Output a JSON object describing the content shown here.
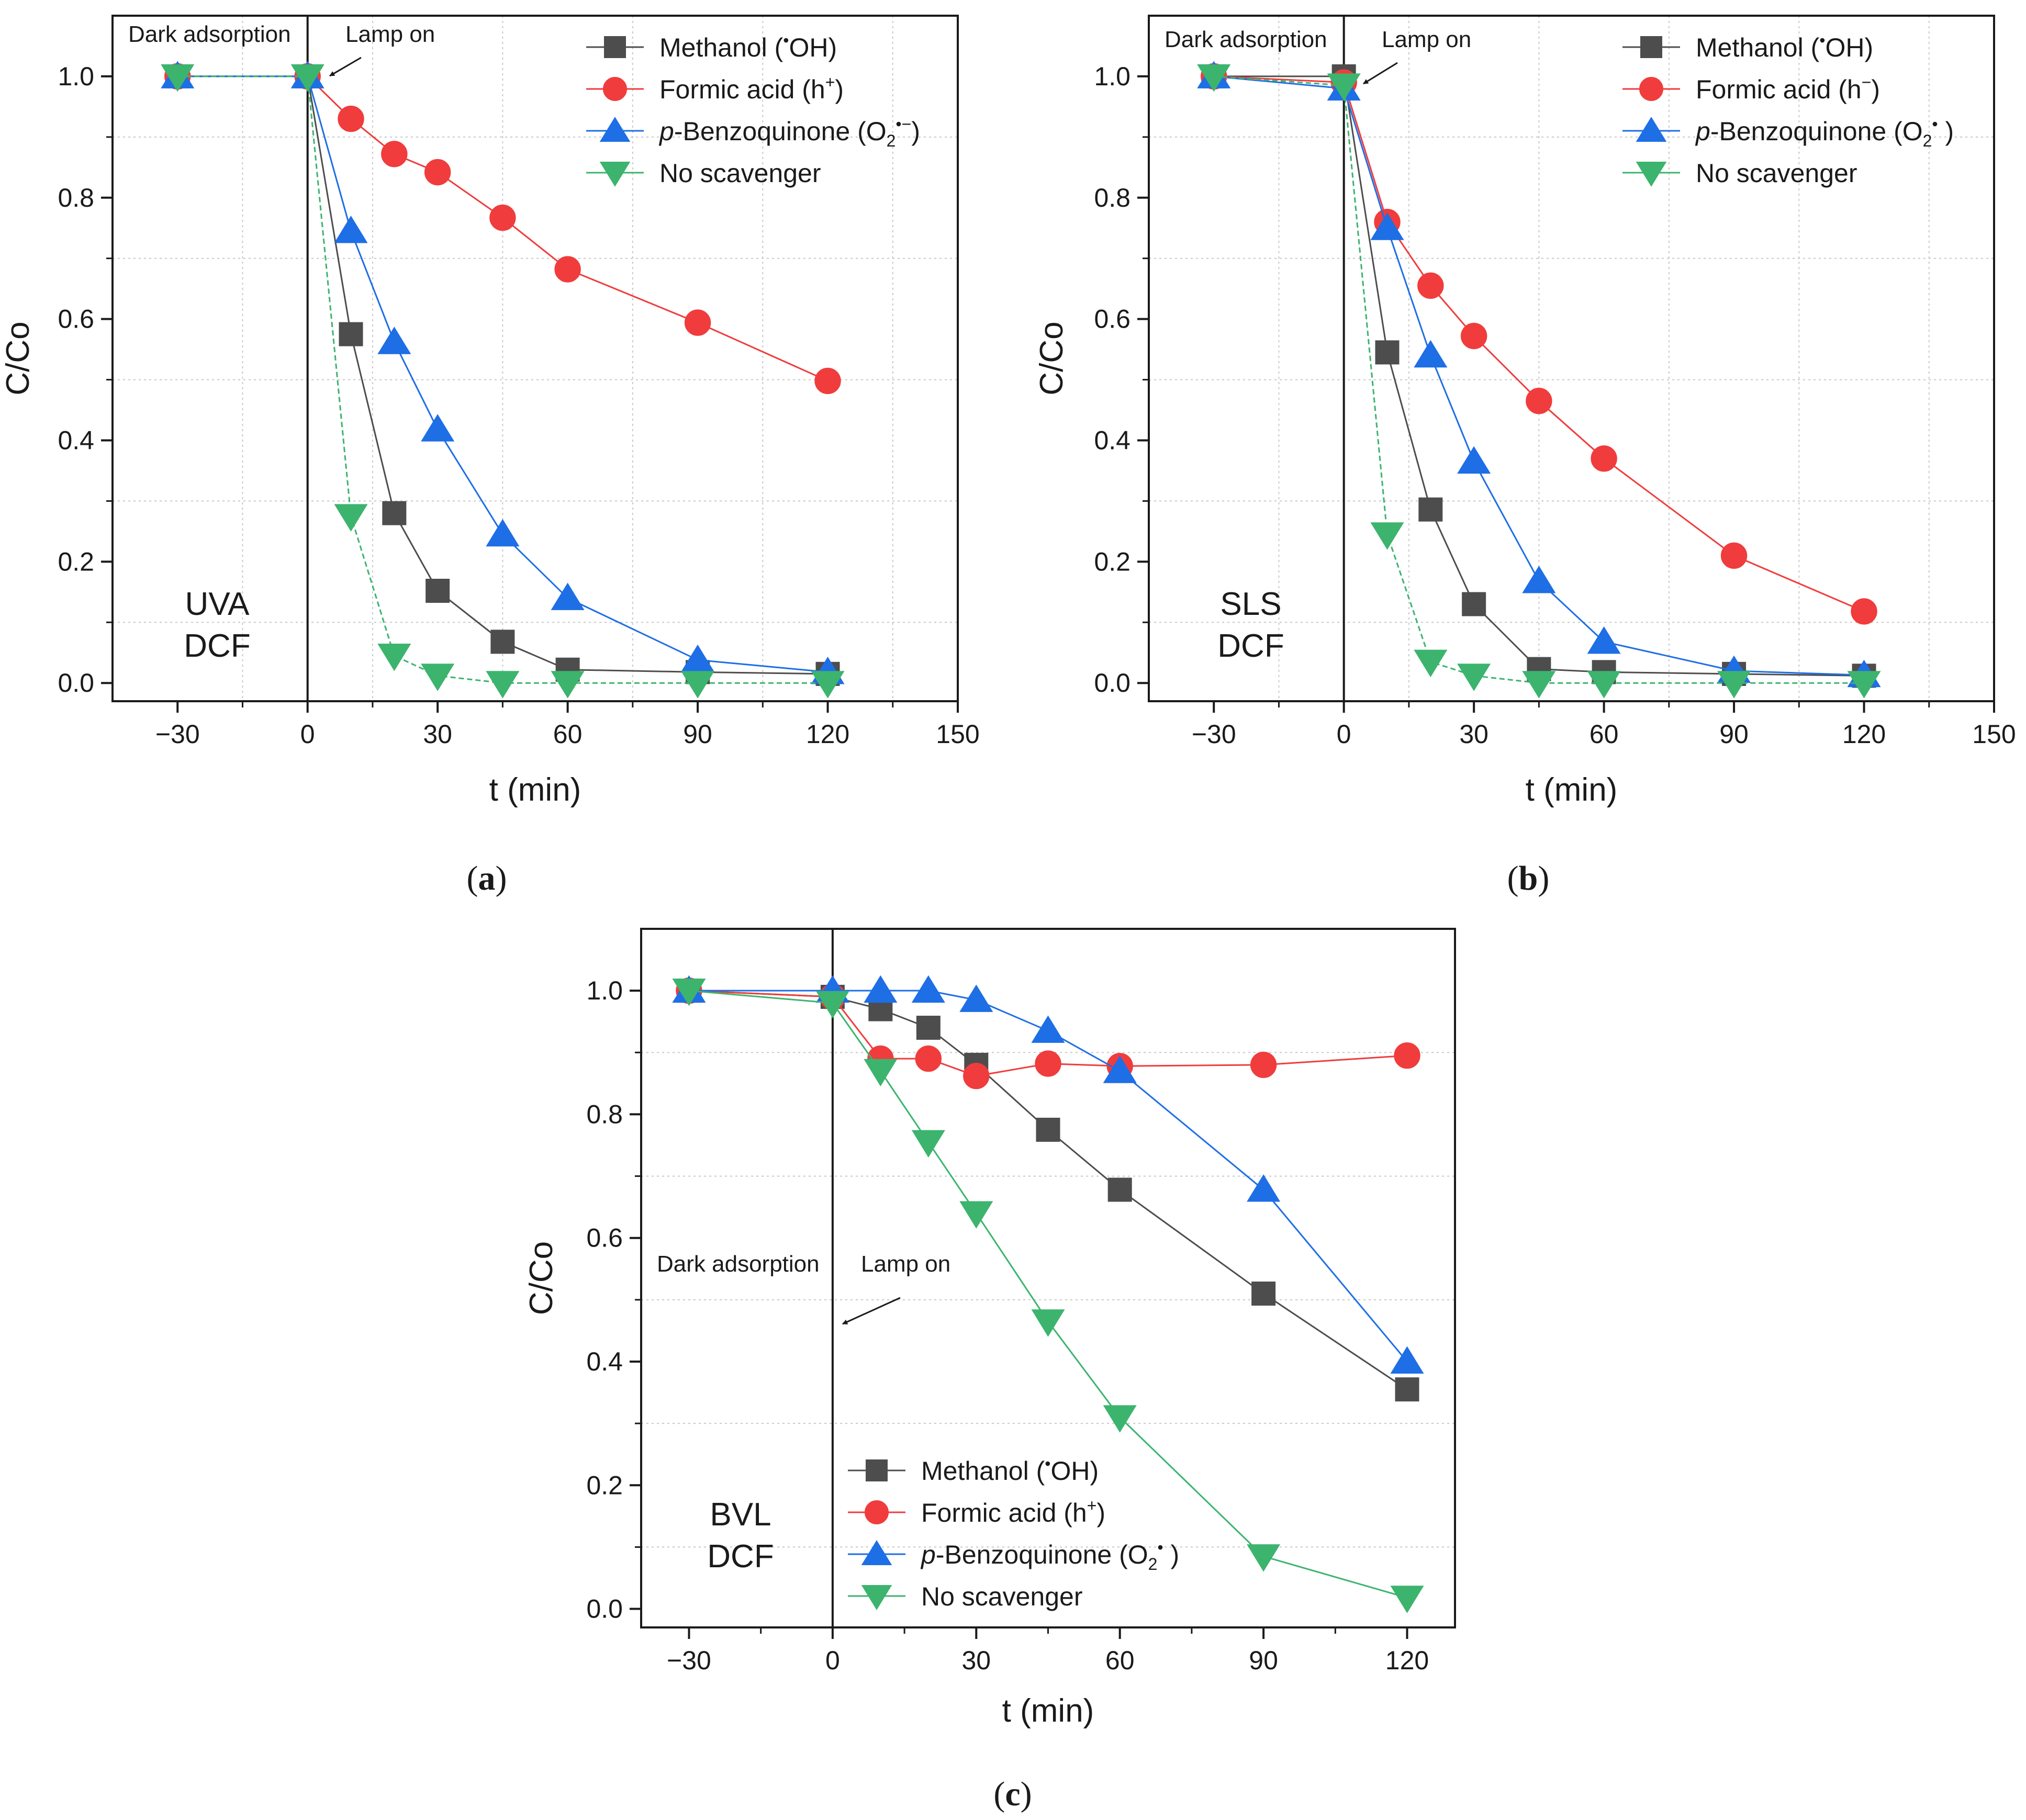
{
  "figure": {
    "panel_captions": [
      "(a)",
      "(b)",
      "(c)"
    ]
  },
  "colors": {
    "methanol": "#4d4d4d",
    "formic": "#f03c3c",
    "benzoquinone": "#1e6ee6",
    "none": "#3cb46e",
    "axis": "#1a1a1a",
    "grid": "#c8c8c8"
  },
  "chart_data": [
    {
      "id": "a",
      "type": "line",
      "caption": "(a)",
      "caption_letter": "a",
      "xlabel": "t (min)",
      "ylabel": "C/Co",
      "xlim": [
        -45,
        150
      ],
      "ylim": [
        -0.03,
        1.1
      ],
      "xticks": [
        -30,
        0,
        30,
        60,
        90,
        120,
        150
      ],
      "xtick_labels": [
        "−30",
        "0",
        "30",
        "60",
        "90",
        "120",
        "150"
      ],
      "yticks": [
        0.0,
        0.2,
        0.4,
        0.6,
        0.8,
        1.0
      ],
      "ytick_labels": [
        "0.0",
        "0.2",
        "0.4",
        "0.6",
        "0.8",
        "1.0"
      ],
      "grid": true,
      "legend_position": "top-right",
      "annotations": {
        "dark": "Dark adsorption",
        "lamp": "Lamp on",
        "label_line1": "UVA",
        "label_line2": "DCF"
      },
      "x": [
        -30,
        0,
        10,
        20,
        30,
        45,
        60,
        90,
        120
      ],
      "series": [
        {
          "name": "Methanol (•OH)",
          "marker": "square",
          "color_key": "methanol",
          "values": [
            1.0,
            1.0,
            0.575,
            0.28,
            0.152,
            0.068,
            0.022,
            0.018,
            0.015
          ]
        },
        {
          "name": "Formic acid (h⁺)",
          "marker": "circle",
          "color_key": "formic",
          "values": [
            1.0,
            1.0,
            0.93,
            0.872,
            0.842,
            0.767,
            0.682,
            0.594,
            0.498
          ]
        },
        {
          "name": "p-Benzoquinone (O₂•−)",
          "marker": "triangle-up",
          "color_key": "benzoquinone",
          "values": [
            1.0,
            1.0,
            0.745,
            0.562,
            0.418,
            0.245,
            0.14,
            0.038,
            0.018
          ]
        },
        {
          "name": "No scavenger",
          "marker": "triangle-down",
          "color_key": "none",
          "values": [
            1.0,
            1.0,
            0.275,
            0.045,
            0.012,
            0.0,
            0.0,
            0.0,
            0.0
          ]
        }
      ],
      "legend_labels": [
        {
          "prefix": "",
          "main": "Methanol (",
          "sup": "•",
          "rest": "OH)",
          "sub": "",
          "supafter": "",
          "close": ""
        },
        {
          "prefix": "",
          "main": "Formic acid (h",
          "sup": "+",
          "rest": ")",
          "sub": "",
          "supafter": "",
          "close": ""
        },
        {
          "prefix": "p",
          "main": "-Benzoquinone (O",
          "sup": "",
          "rest": "",
          "sub": "2",
          "supafter": "•−",
          "close": ")"
        },
        {
          "prefix": "",
          "main": "No scavenger",
          "sup": "",
          "rest": "",
          "sub": "",
          "supafter": "",
          "close": ""
        }
      ]
    },
    {
      "id": "b",
      "type": "line",
      "caption": "(b)",
      "caption_letter": "b",
      "xlabel": "t (min)",
      "ylabel": "C/Co",
      "xlim": [
        -45,
        150
      ],
      "ylim": [
        -0.03,
        1.1
      ],
      "xticks": [
        -30,
        0,
        30,
        60,
        90,
        120,
        150
      ],
      "xtick_labels": [
        "−30",
        "0",
        "30",
        "60",
        "90",
        "120",
        "150"
      ],
      "yticks": [
        0.0,
        0.2,
        0.4,
        0.6,
        0.8,
        1.0
      ],
      "ytick_labels": [
        "0.0",
        "0.2",
        "0.4",
        "0.6",
        "0.8",
        "1.0"
      ],
      "grid": true,
      "legend_position": "top-right",
      "annotations": {
        "dark": "Dark adsorption",
        "lamp": "Lamp on",
        "label_line1": "SLS",
        "label_line2": "DCF"
      },
      "x": [
        -30,
        0,
        10,
        20,
        30,
        45,
        60,
        90,
        120
      ],
      "series": [
        {
          "name": "Methanol (•OH)",
          "marker": "square",
          "color_key": "methanol",
          "values": [
            1.0,
            1.0,
            0.545,
            0.286,
            0.13,
            0.023,
            0.018,
            0.015,
            0.012
          ]
        },
        {
          "name": "Formic acid (h⁻)",
          "marker": "circle",
          "color_key": "formic",
          "values": [
            1.0,
            0.99,
            0.76,
            0.655,
            0.572,
            0.465,
            0.37,
            0.21,
            0.118
          ]
        },
        {
          "name": "p-Benzoquinone (O₂• )",
          "marker": "triangle-up",
          "color_key": "benzoquinone",
          "values": [
            1.0,
            0.98,
            0.75,
            0.54,
            0.365,
            0.168,
            0.068,
            0.02,
            0.013
          ]
        },
        {
          "name": "No scavenger",
          "marker": "triangle-down",
          "color_key": "none",
          "values": [
            1.0,
            0.985,
            0.245,
            0.035,
            0.012,
            0.0,
            0.0,
            0.0,
            0.0
          ]
        }
      ],
      "legend_labels": [
        {
          "prefix": "",
          "main": "Methanol (",
          "sup": "•",
          "rest": "OH)",
          "sub": "",
          "supafter": "",
          "close": ""
        },
        {
          "prefix": "",
          "main": "Formic acid (h",
          "sup": "−",
          "rest": ")",
          "sub": "",
          "supafter": "",
          "close": ""
        },
        {
          "prefix": "p",
          "main": "-Benzoquinone (O",
          "sup": "",
          "rest": "",
          "sub": "2",
          "supafter": "•",
          "close": " )"
        },
        {
          "prefix": "",
          "main": "No scavenger",
          "sup": "",
          "rest": "",
          "sub": "",
          "supafter": "",
          "close": ""
        }
      ]
    },
    {
      "id": "c",
      "type": "line",
      "caption": "(c)",
      "caption_letter": "c",
      "xlabel": "t (min)",
      "ylabel": "C/Co",
      "xlim": [
        -40,
        130
      ],
      "ylim": [
        -0.03,
        1.1
      ],
      "xticks": [
        -30,
        0,
        30,
        60,
        90,
        120
      ],
      "xtick_labels": [
        "−30",
        "0",
        "30",
        "60",
        "90",
        "120"
      ],
      "yticks": [
        0.0,
        0.2,
        0.4,
        0.6,
        0.8,
        1.0
      ],
      "ytick_labels": [
        "0.0",
        "0.2",
        "0.4",
        "0.6",
        "0.8",
        "1.0"
      ],
      "grid": true,
      "legend_position": "bottom-left",
      "annotations": {
        "dark": "Dark adsorption",
        "lamp": "Lamp on",
        "label_line1": "BVL",
        "label_line2": "DCF"
      },
      "x": [
        -30,
        0,
        10,
        20,
        30,
        45,
        60,
        90,
        120
      ],
      "series": [
        {
          "name": "Methanol (•OH)",
          "marker": "square",
          "color_key": "methanol",
          "values": [
            1.0,
            0.99,
            0.97,
            0.94,
            0.88,
            0.775,
            0.678,
            0.51,
            0.355
          ]
        },
        {
          "name": "Formic acid (h⁺)",
          "marker": "circle",
          "color_key": "formic",
          "values": [
            1.0,
            0.99,
            0.89,
            0.89,
            0.862,
            0.882,
            0.878,
            0.88,
            0.895
          ]
        },
        {
          "name": "p-Benzoquinone (O₂• )",
          "marker": "triangle-up",
          "color_key": "benzoquinone",
          "values": [
            1.0,
            1.0,
            1.0,
            1.0,
            0.985,
            0.935,
            0.87,
            0.678,
            0.4
          ]
        },
        {
          "name": "No scavenger",
          "marker": "triangle-down",
          "color_key": "none",
          "values": [
            1.0,
            0.98,
            0.87,
            0.755,
            0.64,
            0.465,
            0.31,
            0.085,
            0.018
          ]
        }
      ],
      "legend_labels": [
        {
          "prefix": "",
          "main": "Methanol (",
          "sup": "•",
          "rest": "OH)",
          "sub": "",
          "supafter": "",
          "close": ""
        },
        {
          "prefix": "",
          "main": "Formic acid (h",
          "sup": "+",
          "rest": ")",
          "sub": "",
          "supafter": "",
          "close": ""
        },
        {
          "prefix": "p",
          "main": "-Benzoquinone (O",
          "sup": "",
          "rest": "",
          "sub": "2",
          "supafter": "•",
          "close": " )"
        },
        {
          "prefix": "",
          "main": "No scavenger",
          "sup": "",
          "rest": "",
          "sub": "",
          "supafter": "",
          "close": ""
        }
      ]
    }
  ]
}
